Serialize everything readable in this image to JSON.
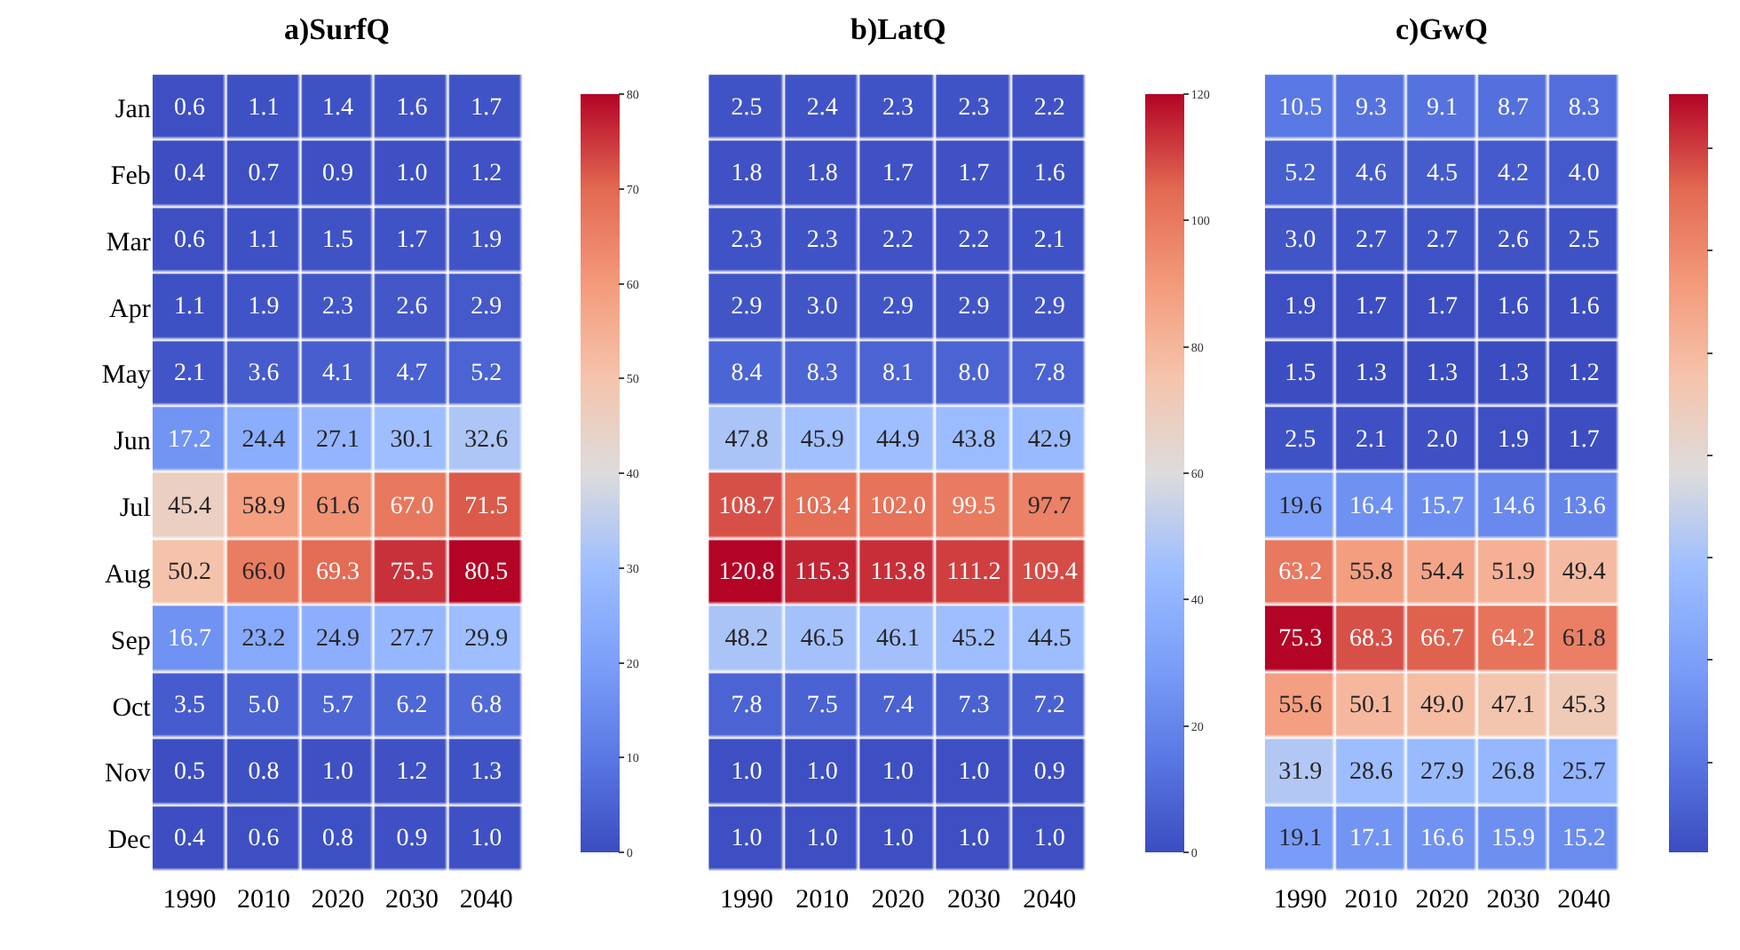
{
  "chart_data": [
    {
      "type": "heatmap",
      "title": "a)SurfQ",
      "categories": [
        "1990",
        "2010",
        "2020",
        "2030",
        "2040"
      ],
      "y_categories": [
        "Jan",
        "Feb",
        "Mar",
        "Apr",
        "May",
        "Jun",
        "Jul",
        "Aug",
        "Sep",
        "Oct",
        "Nov",
        "Dec"
      ],
      "cells": [
        [
          0.6,
          1.1,
          1.4,
          1.6,
          1.7
        ],
        [
          0.4,
          0.7,
          0.9,
          1.0,
          1.2
        ],
        [
          0.6,
          1.1,
          1.5,
          1.7,
          1.9
        ],
        [
          1.1,
          1.9,
          2.3,
          2.6,
          2.9
        ],
        [
          2.1,
          3.6,
          4.1,
          4.7,
          5.2
        ],
        [
          17.2,
          24.4,
          27.1,
          30.1,
          32.6
        ],
        [
          45.4,
          58.9,
          61.6,
          67.0,
          71.5
        ],
        [
          50.2,
          66.0,
          69.3,
          75.5,
          80.5
        ],
        [
          16.7,
          23.2,
          24.9,
          27.7,
          29.9
        ],
        [
          3.5,
          5.0,
          5.7,
          6.2,
          6.8
        ],
        [
          0.5,
          0.8,
          1.0,
          1.2,
          1.3
        ],
        [
          0.4,
          0.6,
          0.8,
          0.9,
          1.0
        ]
      ],
      "cell_labels": [
        [
          "0.6",
          "1.1",
          "1.4",
          "1.6",
          "1.7"
        ],
        [
          "0.4",
          "0.7",
          "0.9",
          "1.0",
          "1.2"
        ],
        [
          "0.6",
          "1.1",
          "1.5",
          "1.7",
          "1.9"
        ],
        [
          "1.1",
          "1.9",
          "2.3",
          "2.6",
          "2.9"
        ],
        [
          "2.1",
          "3.6",
          "4.1",
          "4.7",
          "5.2"
        ],
        [
          "17.2",
          "24.4",
          "27.1",
          "30.1",
          "32.6"
        ],
        [
          "45.4",
          "58.9",
          "61.6",
          "67.0",
          "71.5"
        ],
        [
          "50.2",
          "66.0",
          "69.3",
          "75.5",
          "80.5"
        ],
        [
          "16.7",
          "23.2",
          "24.9",
          "27.7",
          "29.9"
        ],
        [
          "3.5",
          "5.0",
          "5.7",
          "6.2",
          "6.8"
        ],
        [
          "0.5",
          "0.8",
          "1.0",
          "1.2",
          "1.3"
        ],
        [
          "0.4",
          "0.6",
          "0.8",
          "0.9",
          "1.0"
        ]
      ],
      "clim": [
        0,
        80
      ],
      "cticks": [
        0,
        10,
        20,
        30,
        40,
        50,
        60,
        70,
        80
      ]
    },
    {
      "type": "heatmap",
      "title": "b)LatQ",
      "categories": [
        "1990",
        "2010",
        "2020",
        "2030",
        "2040"
      ],
      "y_categories": [
        "Jan",
        "Feb",
        "Mar",
        "Apr",
        "May",
        "Jun",
        "Jul",
        "Aug",
        "Sep",
        "Oct",
        "Nov",
        "Dec"
      ],
      "cells": [
        [
          2.5,
          2.4,
          2.3,
          2.3,
          2.2
        ],
        [
          1.8,
          1.8,
          1.7,
          1.7,
          1.6
        ],
        [
          2.3,
          2.3,
          2.2,
          2.2,
          2.1
        ],
        [
          2.9,
          3.0,
          2.9,
          2.9,
          2.9
        ],
        [
          8.4,
          8.3,
          8.1,
          8.0,
          7.8
        ],
        [
          47.8,
          45.9,
          44.9,
          43.8,
          42.9
        ],
        [
          108.7,
          103.4,
          102.0,
          99.5,
          97.7
        ],
        [
          120.8,
          115.3,
          113.8,
          111.2,
          109.4
        ],
        [
          48.2,
          46.5,
          46.1,
          45.2,
          44.5
        ],
        [
          7.8,
          7.5,
          7.4,
          7.3,
          7.2
        ],
        [
          1.0,
          1.0,
          1.0,
          1.0,
          0.9
        ],
        [
          1.0,
          1.0,
          1.0,
          1.0,
          1.0
        ]
      ],
      "cell_labels": [
        [
          "2.5",
          "2.4",
          "2.3",
          "2.3",
          "2.2"
        ],
        [
          "1.8",
          "1.8",
          "1.7",
          "1.7",
          "1.6"
        ],
        [
          "2.3",
          "2.3",
          "2.2",
          "2.2",
          "2.1"
        ],
        [
          "2.9",
          "3.0",
          "2.9",
          "2.9",
          "2.9"
        ],
        [
          "8.4",
          "8.3",
          "8.1",
          "8.0",
          "7.8"
        ],
        [
          "47.8",
          "45.9",
          "44.9",
          "43.8",
          "42.9"
        ],
        [
          "108.7",
          "103.4",
          "102.0",
          "99.5",
          "97.7"
        ],
        [
          "120.8",
          "115.3",
          "113.8",
          "111.2",
          "109.4"
        ],
        [
          "48.2",
          "46.5",
          "46.1",
          "45.2",
          "44.5"
        ],
        [
          "7.8",
          "7.5",
          "7.4",
          "7.3",
          "7.2"
        ],
        [
          "1.0",
          "1.0",
          "1.0",
          "1.0",
          "0.9"
        ],
        [
          "1.0",
          "1.0",
          "1.0",
          "1.0",
          "1.0"
        ]
      ],
      "clim": [
        0,
        120
      ],
      "cticks": [
        0,
        20,
        40,
        60,
        80,
        100,
        120
      ],
      "tick_labels": "x"
    },
    {
      "type": "heatmap",
      "title": "c)GwQ",
      "categories": [
        "1990",
        "2010",
        "2020",
        "2030",
        "2040"
      ],
      "y_categories": [
        "Jan",
        "Feb",
        "Mar",
        "Apr",
        "May",
        "Jun",
        "Jul",
        "Aug",
        "Sep",
        "Oct",
        "Nov",
        "Dec"
      ],
      "cells": [
        [
          10.5,
          9.3,
          9.1,
          8.7,
          8.3
        ],
        [
          5.2,
          4.6,
          4.5,
          4.2,
          4.0
        ],
        [
          3.0,
          2.7,
          2.7,
          2.6,
          2.5
        ],
        [
          1.9,
          1.7,
          1.7,
          1.6,
          1.6
        ],
        [
          1.5,
          1.3,
          1.3,
          1.3,
          1.2
        ],
        [
          2.5,
          2.1,
          2.0,
          1.9,
          1.7
        ],
        [
          19.6,
          16.4,
          15.7,
          14.6,
          13.6
        ],
        [
          63.2,
          55.8,
          54.4,
          51.9,
          49.4
        ],
        [
          75.3,
          68.3,
          66.7,
          64.2,
          61.8
        ],
        [
          55.6,
          50.1,
          49.0,
          47.1,
          45.3
        ],
        [
          31.9,
          28.6,
          27.9,
          26.8,
          25.7
        ],
        [
          19.1,
          17.1,
          16.6,
          15.9,
          15.2
        ]
      ],
      "cell_labels": [
        [
          "10.5",
          "9.3",
          "9.1",
          "8.7",
          "8.3"
        ],
        [
          "5.2",
          "4.6",
          "4.5",
          "4.2",
          "4.0"
        ],
        [
          "3.0",
          "2.7",
          "2.7",
          "2.6",
          "2.5"
        ],
        [
          "1.9",
          "1.7",
          "1.7",
          "1.6",
          "1.6"
        ],
        [
          "1.5",
          "1.3",
          "1.3",
          "1.3",
          "1.2"
        ],
        [
          "2.5",
          "2.1",
          "2.0",
          "1.9",
          "1.7"
        ],
        [
          "19.6",
          "16.4",
          "15.7",
          "14.6",
          "13.6"
        ],
        [
          "63.2",
          "55.8",
          "54.4",
          "51.9",
          "49.4"
        ],
        [
          "75.3",
          "68.3",
          "66.7",
          "64.2",
          "61.8"
        ],
        [
          "55.6",
          "50.1",
          "49.0",
          "47.1",
          "45.3"
        ],
        [
          "31.9",
          "28.6",
          "27.9",
          "26.8",
          "25.7"
        ],
        [
          "19.1",
          "17.1",
          "16.6",
          "15.9",
          "15.2"
        ]
      ],
      "tick_labels": "x"
    }
  ]
}
